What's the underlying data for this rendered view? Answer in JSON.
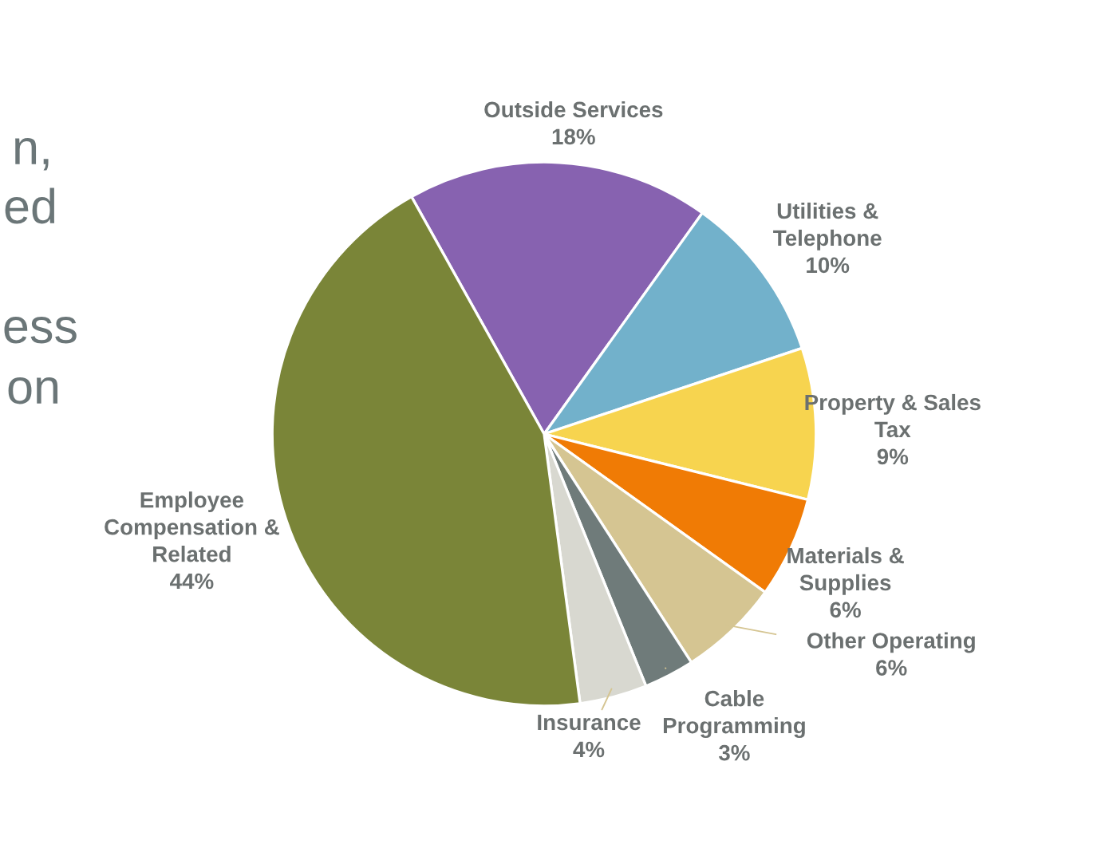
{
  "chart_data": {
    "type": "pie",
    "categories": [
      "Outside Services",
      "Utilities &\nTelephone",
      "Property & Sales\nTax",
      "Materials &\nSupplies",
      "Other Operating",
      "Cable\nProgramming",
      "Insurance",
      "Employee\nCompensation &\nRelated"
    ],
    "values": [
      18,
      10,
      9,
      6,
      6,
      3,
      4,
      44
    ],
    "colors": [
      "#8762b0",
      "#72b1cb",
      "#f7d44f",
      "#f07b05",
      "#d5c592",
      "#6f7b7a",
      "#d8d8d0",
      "#7a8538"
    ],
    "value_labels": [
      "18%",
      "10%",
      "9%",
      "6%",
      "6%",
      "3%",
      "4%",
      "44%"
    ],
    "annotations": [
      "n,",
      "ed",
      "ess",
      "on"
    ]
  }
}
